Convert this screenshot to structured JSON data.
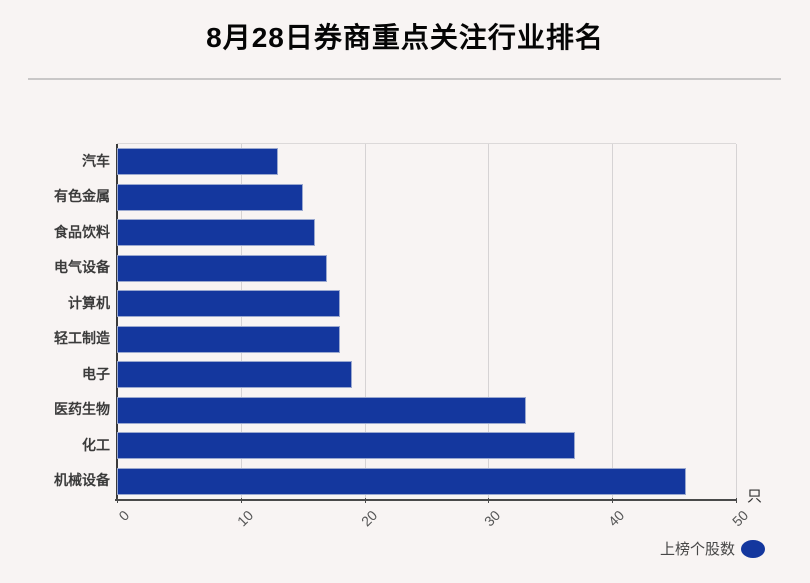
{
  "title": "8月28日券商重点关注行业排名",
  "chart_data": {
    "type": "bar",
    "orientation": "horizontal",
    "title": "8月28日券商重点关注行业排名",
    "categories": [
      "汽车",
      "有色金属",
      "食品饮料",
      "电气设备",
      "计算机",
      "轻工制造",
      "电子",
      "医药生物",
      "化工",
      "机械设备"
    ],
    "values": [
      13,
      15,
      16,
      17,
      18,
      18,
      19,
      33,
      37,
      46
    ],
    "series_name": "上榜个股数",
    "xlabel": "只",
    "ylabel": "",
    "xlim": [
      0,
      50
    ],
    "x_ticks": [
      0,
      10,
      20,
      30,
      40,
      50
    ],
    "x_tick_rotation_deg": -45,
    "grid": true,
    "legend_position": "bottom-right",
    "legend_label": "上榜个股数"
  },
  "colors": {
    "background": "#f8f4f3",
    "bar": "#14379e",
    "bar_border": "#9aa8cf",
    "grid": "#d6d3d4",
    "axis": "#4a4a4a",
    "title_text": "#050505",
    "label_text": "#3b3b3b",
    "tick_text": "#555555"
  }
}
